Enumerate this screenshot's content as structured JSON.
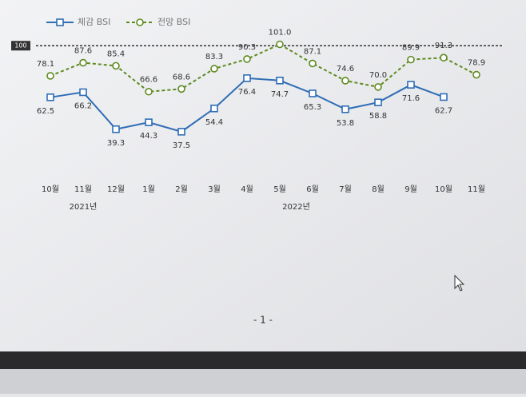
{
  "chart_data": {
    "type": "line",
    "categories": [
      "10월",
      "11월",
      "12월",
      "1월",
      "2월",
      "3월",
      "4월",
      "5월",
      "6월",
      "7월",
      "8월",
      "9월",
      "10월",
      "11월"
    ],
    "year_labels": [
      "2021년",
      "2022년"
    ],
    "series": [
      {
        "name": "체감 BSI",
        "color": "#2f6db5",
        "marker": "square",
        "dashed": false,
        "values": [
          62.5,
          66.2,
          39.3,
          44.3,
          37.5,
          54.4,
          76.4,
          74.7,
          65.3,
          53.8,
          58.8,
          71.6,
          62.7,
          null
        ],
        "value_labels": [
          "62.5",
          "66.2",
          "39.3",
          "44.3",
          "37.5",
          "54.4",
          "76.4",
          "74.7",
          "65.3",
          "53.8",
          "58.8",
          "71.6",
          "62.7",
          null
        ]
      },
      {
        "name": "전망 BSI",
        "color": "#5e8a1f",
        "marker": "circle",
        "dashed": true,
        "values": [
          78.1,
          87.6,
          85.4,
          66.6,
          68.6,
          83.3,
          90.3,
          101.0,
          87.1,
          74.6,
          70.0,
          89.9,
          91.3,
          78.9
        ],
        "value_labels": [
          "78.1",
          "87.6",
          "85.4",
          "66.6",
          "68.6",
          "83.3",
          "90.3",
          "101.0",
          "87.1",
          "74.6",
          "70.0",
          "89.9",
          "91.3",
          "78.9"
        ]
      }
    ],
    "reference_line": 100,
    "ylim": [
      20,
      110
    ]
  },
  "page_number": "- 1 -"
}
